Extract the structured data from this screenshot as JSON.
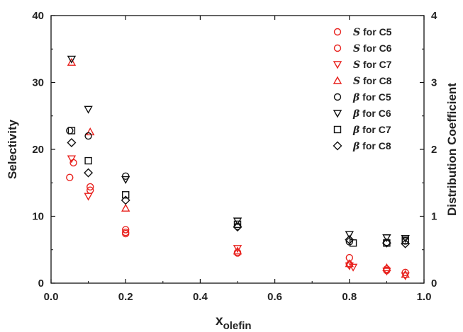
{
  "chart_data": {
    "type": "scatter",
    "xlabel": "x",
    "xlabel_sub": "olefin",
    "ylabel": "Selectivity",
    "y2label": "Distribution Coefficient",
    "xlim": [
      0.0,
      1.0
    ],
    "ylim": [
      0,
      40
    ],
    "y2lim": [
      0,
      4
    ],
    "xticks": [
      "0.0",
      "0.2",
      "0.4",
      "0.6",
      "0.8",
      "1.0"
    ],
    "yticks": [
      "0",
      "10",
      "20",
      "30",
      "40"
    ],
    "y2ticks": [
      "0",
      "1",
      "2",
      "3",
      "4"
    ],
    "grid": false,
    "legend_position": "top-right",
    "colors": {
      "S": "#e8221e",
      "beta": "#111111"
    },
    "series": [
      {
        "sym": "S",
        "label": " for C5",
        "marker": "circle",
        "axis": "left",
        "color": "#e8221e",
        "points": [
          [
            0.05,
            15.8
          ],
          [
            0.06,
            18.0
          ],
          [
            0.105,
            14.4
          ],
          [
            0.2,
            7.4
          ],
          [
            0.2,
            8.0
          ],
          [
            0.5,
            4.5
          ],
          [
            0.8,
            3.8
          ],
          [
            0.9,
            2.1
          ],
          [
            0.95,
            1.6
          ]
        ]
      },
      {
        "sym": "S",
        "label": " for C6",
        "marker": "circle",
        "axis": "left",
        "color": "#e8221e",
        "points": [
          [
            0.105,
            13.9
          ],
          [
            0.2,
            7.6
          ],
          [
            0.5,
            4.6
          ],
          [
            0.8,
            2.8
          ],
          [
            0.9,
            1.9
          ]
        ]
      },
      {
        "sym": "S",
        "label": " for C7",
        "marker": "triangle-down",
        "axis": "left",
        "color": "#e8221e",
        "points": [
          [
            0.055,
            18.6
          ],
          [
            0.1,
            13.0
          ],
          [
            0.5,
            5.2
          ],
          [
            0.8,
            2.6
          ],
          [
            0.81,
            2.4
          ],
          [
            0.9,
            1.8
          ],
          [
            0.95,
            1.1
          ]
        ]
      },
      {
        "sym": "S",
        "label": " for C8",
        "marker": "triangle-up",
        "axis": "left",
        "color": "#e8221e",
        "points": [
          [
            0.055,
            33.0
          ],
          [
            0.105,
            22.6
          ],
          [
            0.2,
            11.2
          ],
          [
            0.5,
            4.8
          ],
          [
            0.8,
            2.9
          ],
          [
            0.9,
            2.3
          ],
          [
            0.95,
            1.3
          ]
        ]
      },
      {
        "sym": "β",
        "label": " for C5",
        "marker": "circle",
        "axis": "right",
        "color": "#111111",
        "points": [
          [
            0.05,
            2.28
          ],
          [
            0.1,
            2.2
          ],
          [
            0.2,
            1.6
          ],
          [
            0.5,
            0.85
          ],
          [
            0.8,
            0.62
          ],
          [
            0.9,
            0.61
          ],
          [
            0.95,
            0.63
          ]
        ]
      },
      {
        "sym": "β",
        "label": " for C6",
        "marker": "triangle-down",
        "axis": "right",
        "color": "#111111",
        "points": [
          [
            0.055,
            3.35
          ],
          [
            0.1,
            2.6
          ],
          [
            0.2,
            1.55
          ],
          [
            0.5,
            0.93
          ],
          [
            0.8,
            0.73
          ],
          [
            0.9,
            0.68
          ],
          [
            0.95,
            0.67
          ]
        ]
      },
      {
        "sym": "β",
        "label": " for C7",
        "marker": "square",
        "axis": "right",
        "color": "#111111",
        "points": [
          [
            0.055,
            2.28
          ],
          [
            0.1,
            1.83
          ],
          [
            0.2,
            1.32
          ],
          [
            0.5,
            0.88
          ],
          [
            0.81,
            0.6
          ],
          [
            0.9,
            0.6
          ],
          [
            0.95,
            0.64
          ]
        ]
      },
      {
        "sym": "β",
        "label": " for C8",
        "marker": "diamond",
        "axis": "right",
        "color": "#111111",
        "points": [
          [
            0.055,
            2.1
          ],
          [
            0.1,
            1.65
          ],
          [
            0.2,
            1.24
          ],
          [
            0.5,
            0.84
          ],
          [
            0.8,
            0.65
          ],
          [
            0.9,
            0.6
          ],
          [
            0.95,
            0.59
          ]
        ]
      }
    ]
  }
}
